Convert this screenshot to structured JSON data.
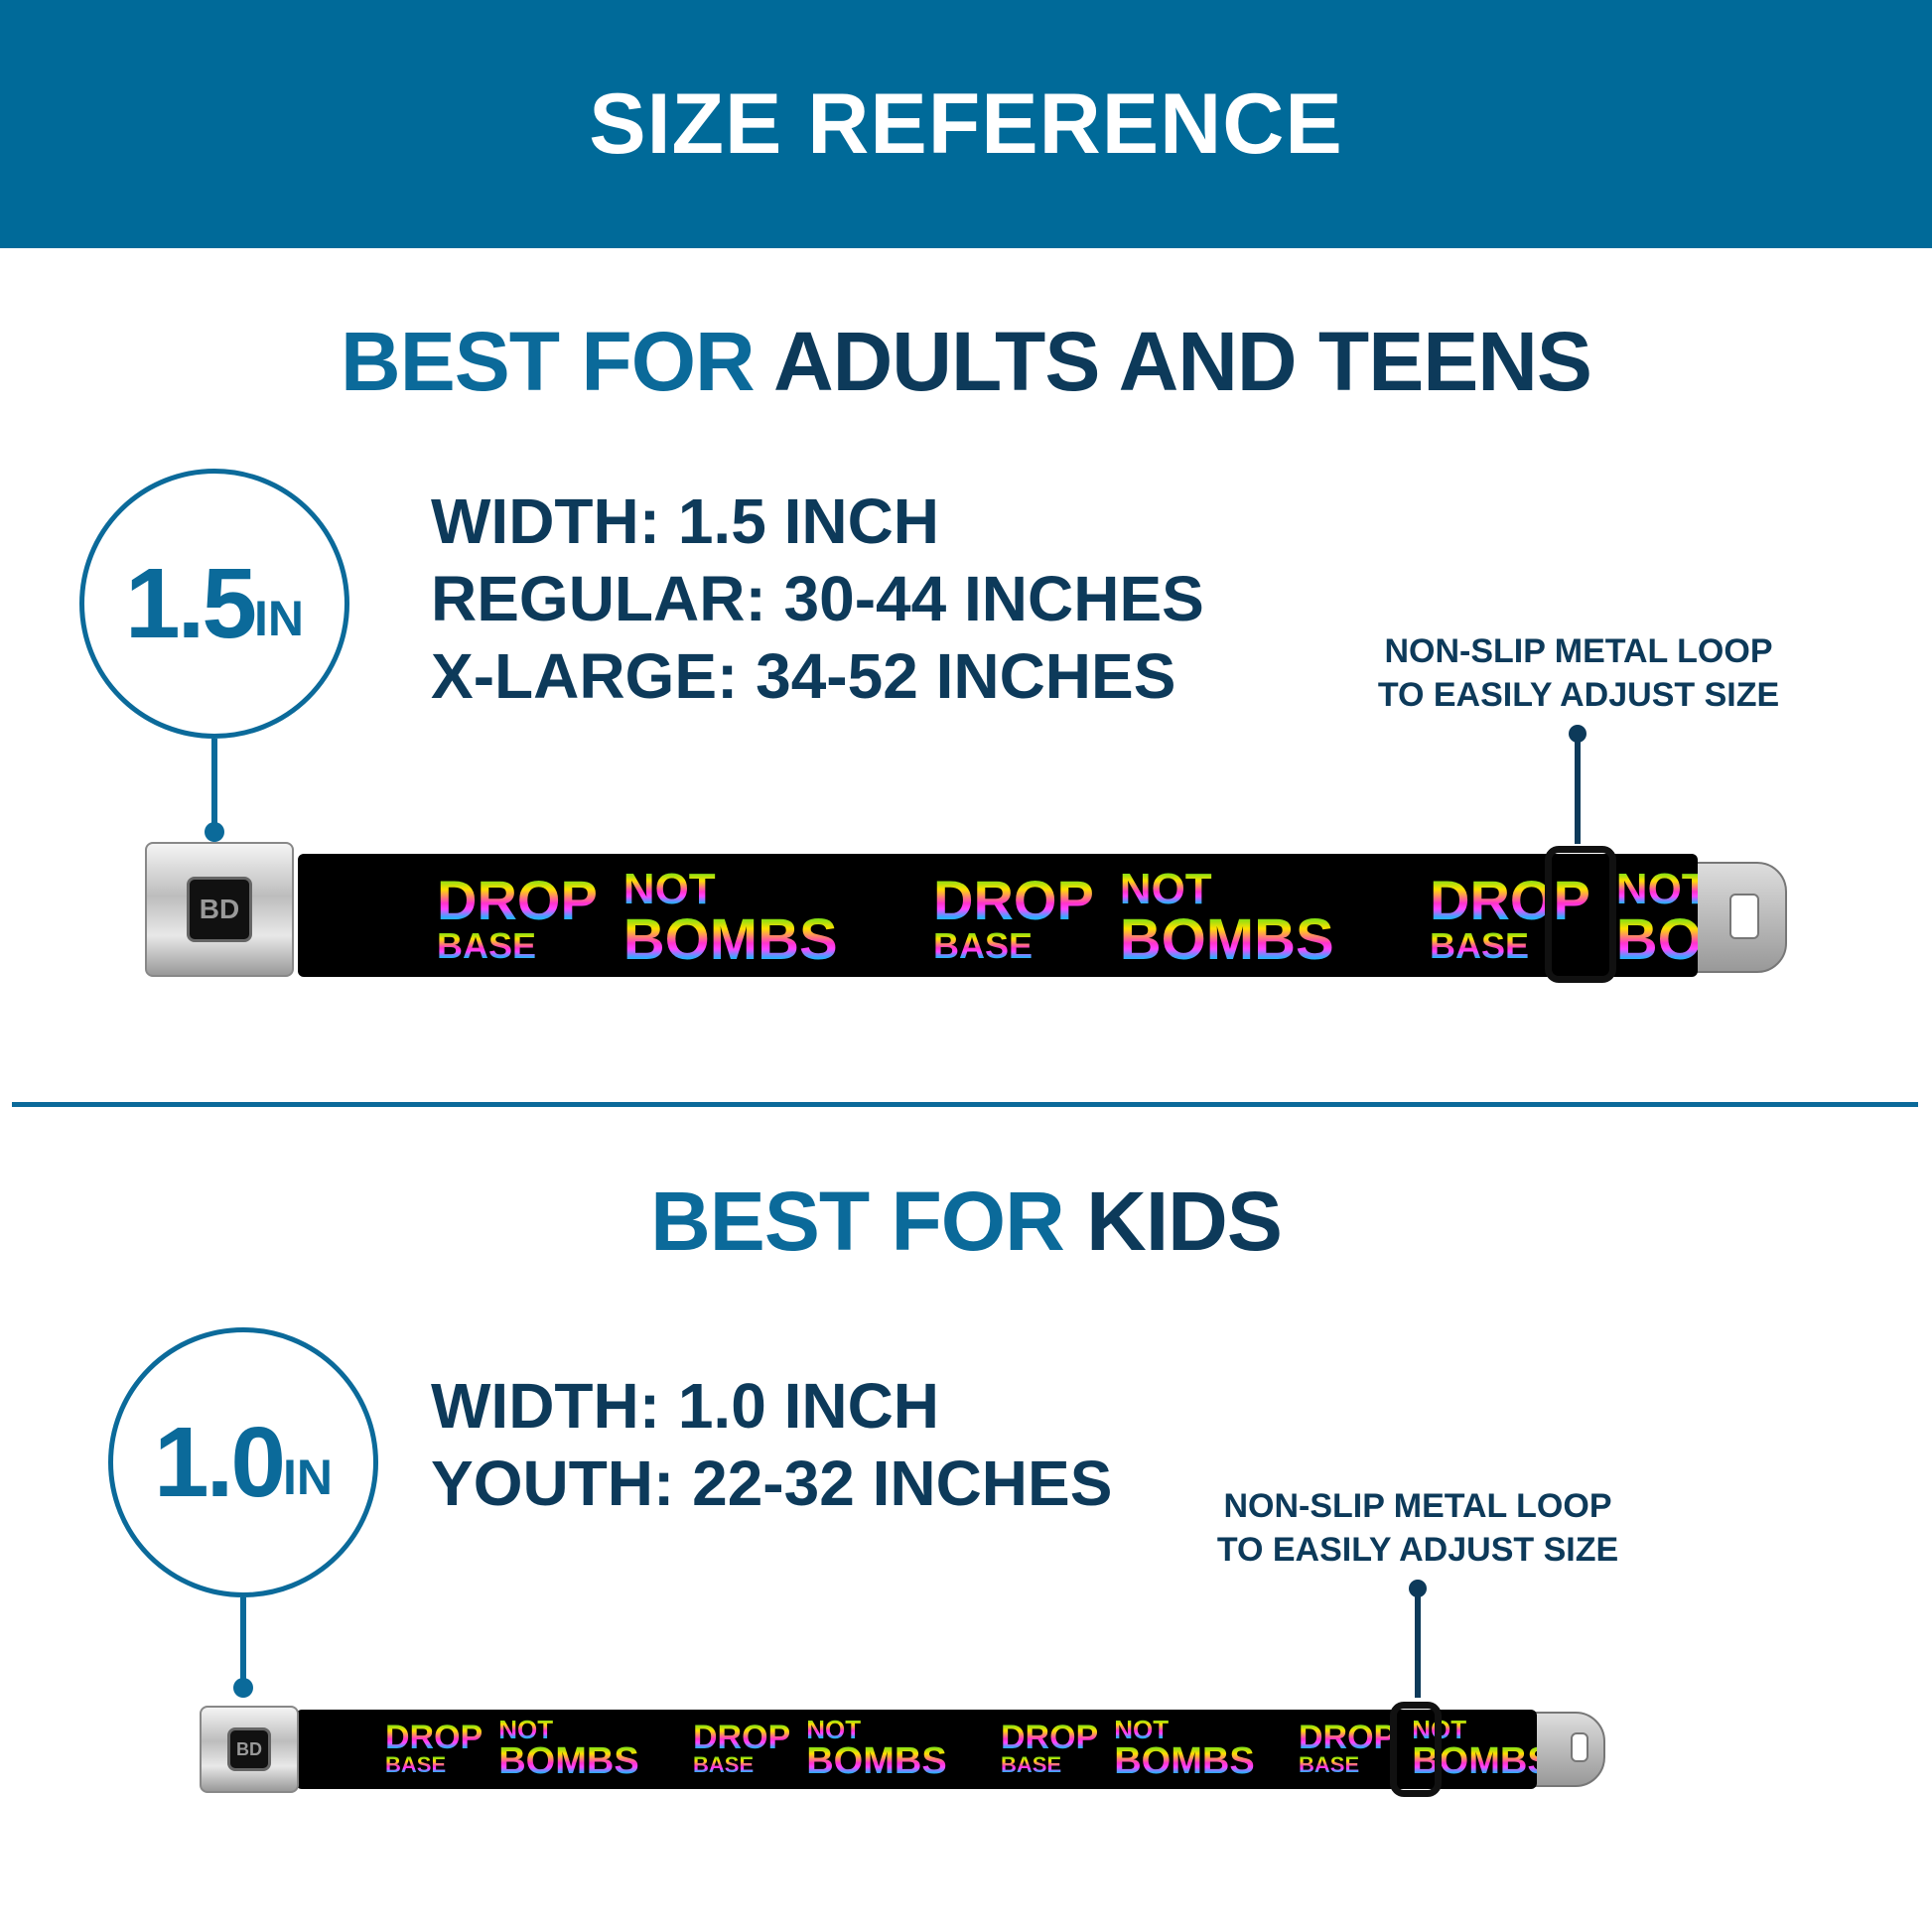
{
  "header": {
    "title": "SIZE REFERENCE"
  },
  "colors": {
    "header": "#006a99",
    "accent": "#0b6a9a",
    "dark": "#0d3a5a"
  },
  "adults": {
    "heading_prefix": "BEST FOR",
    "heading_main": "ADULTS AND TEENS",
    "badge_value": "1.5",
    "badge_unit": "IN",
    "specs": [
      "WIDTH: 1.5 INCH",
      "REGULAR: 30-44 INCHES",
      "X-LARGE: 34-52 INCHES"
    ],
    "note": [
      "NON-SLIP METAL LOOP",
      "TO EASILY ADJUST SIZE"
    ]
  },
  "kids": {
    "heading_prefix": "BEST FOR",
    "heading_main": "KIDS",
    "badge_value": "1.0",
    "badge_unit": "IN",
    "specs": [
      "WIDTH: 1.0 INCH",
      "YOUTH: 22-32 INCHES"
    ],
    "note": [
      "NON-SLIP METAL LOOP",
      "TO EASILY ADJUST SIZE"
    ]
  },
  "belt": {
    "print": {
      "w1": "DROP",
      "w2": "BASE",
      "w3": "NOT",
      "w4": "BOMBS"
    },
    "logo": "BD"
  }
}
